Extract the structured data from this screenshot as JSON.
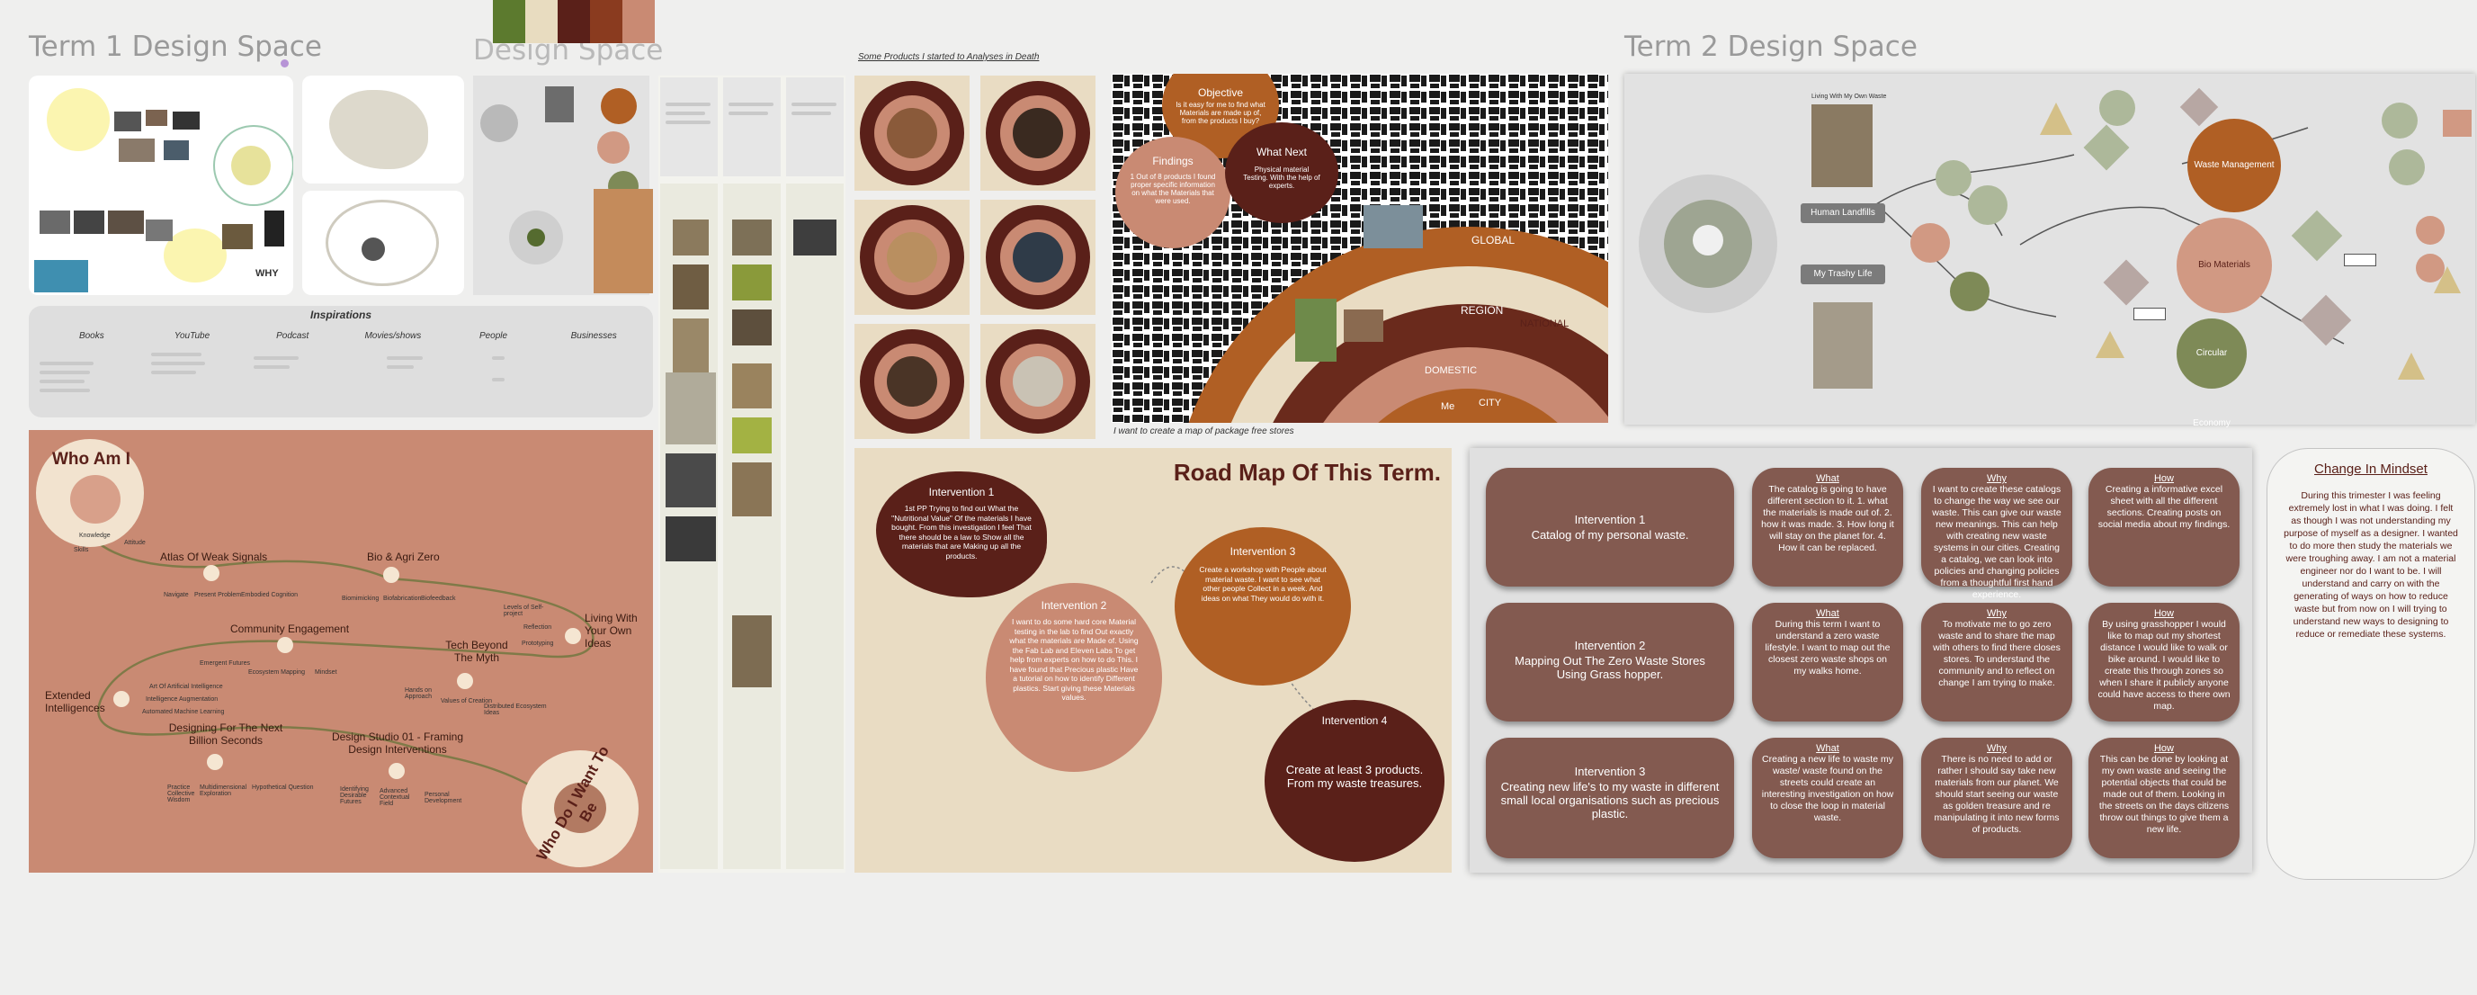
{
  "titles": {
    "term1": "Term 1 Design Space",
    "design_space": "Design Space",
    "term2": "Term 2 Design Space",
    "products_caption": "Some Products I started to Analyses in Death",
    "map_caption": "I want to create a map of package free stores"
  },
  "top_left_panel": {
    "why": "WHY"
  },
  "inspirations": {
    "title": "Inspirations",
    "columns": [
      "Books",
      "YouTube",
      "Podcast",
      "Movies/shows",
      "People",
      "Businesses"
    ]
  },
  "who_am_i": {
    "title": "Who Am I",
    "labels": [
      "Knowledge",
      "Attitude",
      "Skills",
      "Atlas Of Weak Signals",
      "Navigate",
      "Present Problem",
      "Embodied Cognition",
      "Bio & Agri Zero",
      "Biomimicking",
      "Biofabrication",
      "Biofeedback",
      "Community Engagement",
      "Emergent Futures",
      "Ecosystem Mapping",
      "Mindset",
      "Tech Beyond The Myth",
      "Hands on Approach",
      "Values of Creation",
      "Distributed Ecosystem Ideas",
      "Living With Your Own Ideas",
      "Levels of Self-project",
      "Reflection",
      "Prototyping",
      "Extended Intelligences",
      "Art Of Artificial Intelligence",
      "Intelligence Augmentation",
      "Automated Machine Learning",
      "Designing For The Next Billion Seconds",
      "Practice Collective Wisdom",
      "Multidimensional Exploration",
      "Hypothetical Question",
      "Design Studio 01 - Framing Design Interventions",
      "Identifying Desirable Futures",
      "Advanced Contextual Field",
      "Personal Development"
    ],
    "closing": "Who Do I Want To Be"
  },
  "map": {
    "objective_title": "Objective",
    "objective_text": "Is it easy for me to find what Materials are made up of, from the products I buy?",
    "findings_title": "Findings",
    "findings_text": "1 Out of 8 products I found proper specific information on what the Materials that were used.",
    "next_title": "What Next",
    "next_text": "Physical material Testing. With the help of experts.",
    "rings": [
      "GLOBAL",
      "REGION",
      "NATIONAL",
      "DOMESTIC",
      "CITY",
      "Me"
    ]
  },
  "roadmap": {
    "title": "Road Map Of This Term.",
    "i1_title": "Intervention 1",
    "i1_text": "1st PP Trying to find out What the \"Nutritional Value\" Of the materials I have bought. From this investigation I feel That there should be a law to Show all the materials that are Making up all the products.",
    "i2_title": "Intervention 2",
    "i2_text": "I want to do some hard core Material testing in the lab to find Out exactly what the materials are Made of. Using the Fab Lab and Eleven Labs To get help from experts on how to do This. I have found that Precious plastic Have a tutorial on how to identify Different plastics. Start giving these Materials values.",
    "i3_title": "Intervention 3",
    "i3_text": "Create a workshop with People about material waste. I want to see what other people Collect in a week. And ideas on what They would do with it.",
    "i4_title": "Intervention 4",
    "i4_text": "Create at least 3 products. From my waste treasures."
  },
  "term2_map": {
    "human_landfills": "Human Landfills",
    "my_trashy_life": "My Trashy Life",
    "living_with": "Living With My Own Waste",
    "circles": [
      "Waste Management",
      "Bio Materials",
      "Circular Economy"
    ]
  },
  "grid": {
    "what": "What",
    "why": "Why",
    "how": "How",
    "rows": [
      {
        "title": "Intervention 1",
        "sub": "Catalog of my personal waste.",
        "what": "The catalog is going to have different section to it. 1. what the materials is made out of. 2. how it was made. 3. How long it will stay on the planet for. 4. How it can be replaced.",
        "why": "I want to create these catalogs to change the way we see our waste. This can give our waste new meanings. This can help with creating new waste systems in our cities. Creating a catalog, we can look into policies and changing policies from a thoughtful first hand experience.",
        "how": "Creating a informative excel sheet with all the different sections. Creating posts on social media about my findings."
      },
      {
        "title": "Intervention 2",
        "sub": "Mapping Out The Zero Waste Stores Using Grass hopper.",
        "what": "During this term I want to understand a zero waste lifestyle. I want to map out the closest zero waste shops on my walks home.",
        "why": "To motivate me to go zero waste and to share the map with others to find there closes stores. To understand the community and to reflect on change I am trying to make.",
        "how": "By using grasshopper I would like to map out my shortest distance I would like to walk or bike around. I would like to create this through zones so when I share it publicly anyone could have access to there own map."
      },
      {
        "title": "Intervention 3",
        "sub": "Creating new life's to my waste in different small local organisations such as precious plastic.",
        "what": "Creating a new life to waste my waste/ waste found on the streets could create an interesting investigation on how to close the loop in material waste.",
        "why": "There is no need to add or rather I should say take new materials from our planet. We should start seeing our waste as golden treasure and re manipulating it into new forms of products.",
        "how": "This can be done by looking at my own waste and seeing the potential objects that could be made out of them. Looking in the streets on the days citizens throw out things to give them a new life."
      }
    ]
  },
  "mindset": {
    "title": "Change In Mindset",
    "text": "During this trimester I was feeling extremely lost in what I was doing. I felt as though I was not understanding my purpose of myself as a designer. I wanted to do more then study the materials we were troughing away. I am not a material engineer nor do I want to be. I will understand and carry on with the generating of ways on how to reduce waste but from now on I will trying to understand new ways to designing to reduce or remediate these systems."
  },
  "colors": {
    "terracotta": "#c98a73",
    "dark_brown": "#5a2019",
    "orange_brown": "#b05f24",
    "beige": "#e9dcc3",
    "grid_box": "#835a50"
  }
}
